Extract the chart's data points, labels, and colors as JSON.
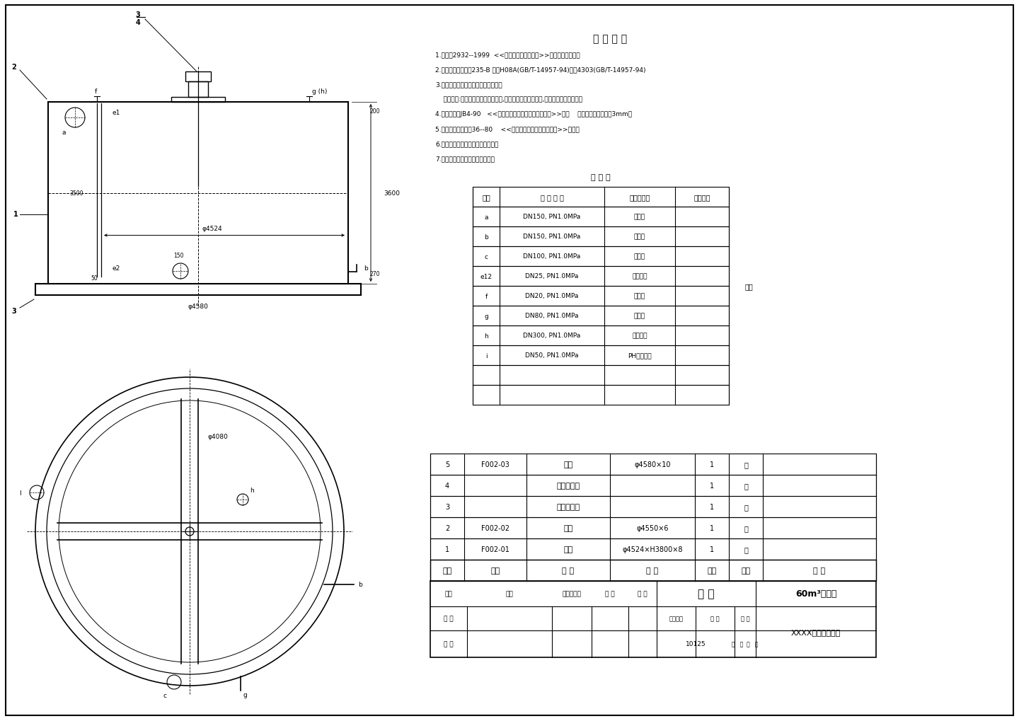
{
  "bg_color": "#ffffff",
  "line_color": "#000000",
  "tech_title": "技 术 要 求",
  "tech_items": [
    "1.设备按2932--1999  <<水处理设备技术条件>>制造试验和验收。",
    "2.设备焊接用材料按235-B 焊丝H08A(GB/T-14957-94)焊条4303(GB/T-14957-94)",
    "3.设备制造完毕进行如下任一种试验：",
    "    盛水试验:试验时间不得少于一小时,试验中焊缝处应无渗漏,试验中焊缝应无渗漏。",
    "4.设备衬胶按JB4-90   <<化工设备、管道外防腐设计规范>>执行    半硬橡胶，共橡胶衬3mm。",
    "5.设备包装，运输按36--80    <<压力容器油漆，包装和运输>>执行；",
    "6.未注焊缝高度为母材中薄壁厚度。",
    "7.设备外部安装设护笼的直爬梯。"
  ],
  "pipe_table_title": "管 口 表",
  "pipe_table_headers": [
    "代号",
    "管 口 规 格",
    "用途或名称",
    "密封形式"
  ],
  "pipe_table_rows": [
    [
      "a",
      "DN150, PN1.0MPa",
      "进水口",
      ""
    ],
    [
      "b",
      "DN150, PN1.0MPa",
      "出水口",
      ""
    ],
    [
      "c",
      "DN100, PN1.0MPa",
      "排污口",
      ""
    ],
    [
      "e12",
      "DN25, PN1.0MPa",
      "液位计口",
      ""
    ],
    [
      "f",
      "DN20, PN1.0MPa",
      "加酸口",
      ""
    ],
    [
      "g",
      "DN80, PN1.0MPa",
      "备用口",
      ""
    ],
    [
      "h",
      "DN300, PN1.0MPa",
      "电极接口",
      ""
    ],
    [
      "i",
      "DN50, PN1.0MPa",
      "PH电极接口",
      ""
    ]
  ],
  "pipe_table_note": "右面",
  "parts_table_headers": [
    "序号",
    "图号",
    "名 称",
    "规 格",
    "数量",
    "单位",
    "备 注"
  ],
  "parts_table_rows": [
    [
      "5",
      "F002-03",
      "底板",
      "φ4580×10",
      "1",
      "套",
      ""
    ],
    [
      "4",
      "",
      "减速机机座",
      "",
      "1",
      "副",
      ""
    ],
    [
      "3",
      "",
      "电机减速机",
      "",
      "1",
      "套",
      ""
    ],
    [
      "2",
      "F002-02",
      "顶板",
      "φ4550×6",
      "1",
      "只",
      ""
    ],
    [
      "1",
      "F002-01",
      "筒体",
      "φ4524×H3800×8",
      "1",
      "只",
      ""
    ]
  ],
  "title_block": {
    "drawing_name": "总 图",
    "project_name": "60m³出水箱",
    "company": "XXXX脱硫废水工程",
    "scale": "10125"
  }
}
